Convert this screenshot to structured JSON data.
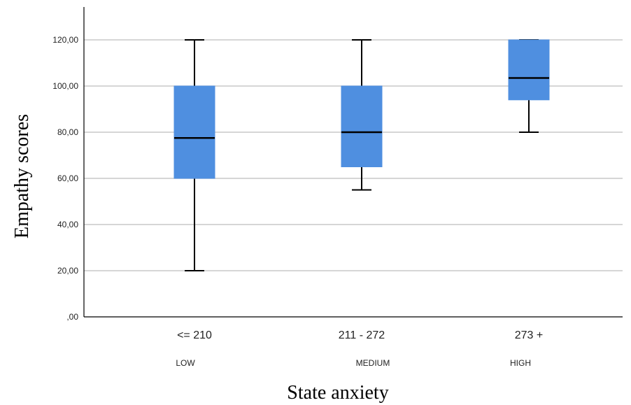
{
  "chart_data": {
    "type": "boxplot",
    "xlabel": "State anxiety",
    "ylabel": "Empathy scores",
    "categories": [
      "<= 210",
      "211 - 272",
      "273 +"
    ],
    "category_sublabels": [
      "LOW",
      "MEDIUM",
      "HIGH"
    ],
    "ylim": [
      0,
      130
    ],
    "yticks": [
      0,
      20,
      40,
      60,
      80,
      100,
      120
    ],
    "ytick_labels": [
      ",00",
      "20,00",
      "40,00",
      "60,00",
      "80,00",
      "100,00",
      "120,00"
    ],
    "grid": true,
    "boxes": [
      {
        "min": 20,
        "q1": 60,
        "median": 77.5,
        "q3": 100,
        "max": 120
      },
      {
        "min": 55,
        "q1": 65,
        "median": 80,
        "q3": 100,
        "max": 120
      },
      {
        "min": 80,
        "q1": 94,
        "median": 103.5,
        "q3": 120,
        "max": 120
      }
    ],
    "box_color": "#4f8fe0",
    "grid_color": "#c8c8c8"
  }
}
